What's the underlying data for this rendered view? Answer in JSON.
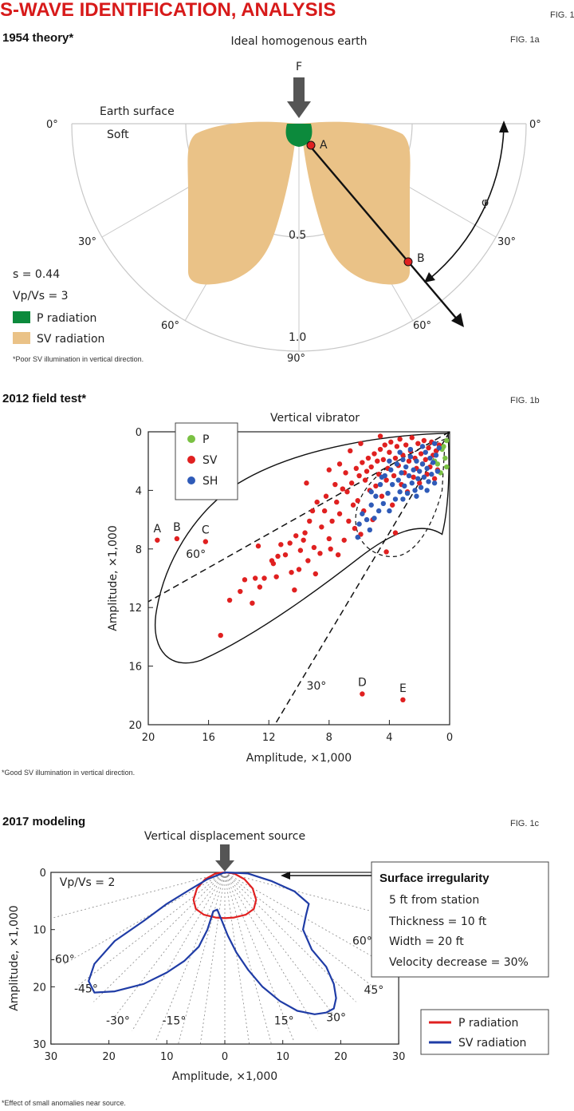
{
  "header": {
    "title": "S-WAVE IDENTIFICATION, ANALYSIS",
    "fig_label": "FIG. 1"
  },
  "panels": {
    "a": {
      "heading": "1954 theory*",
      "fig_label": "FIG. 1a",
      "subtitle": "Ideal homogenous earth",
      "force_label": "F",
      "surface_label": "Earth surface",
      "soft_label": "Soft",
      "radius_labels": [
        "0.5",
        "1.0"
      ],
      "angle_labels": [
        "0°",
        "30°",
        "60°",
        "90°",
        "60°",
        "30°",
        "0°"
      ],
      "phi_label": "φ",
      "point_labels": [
        "A",
        "B"
      ],
      "params": [
        "s = 0.44",
        "Vp/Vs = 3"
      ],
      "legend": [
        {
          "label": "P radiation",
          "color": "#0c8a3c"
        },
        {
          "label": "SV radiation",
          "color": "#eac287"
        }
      ],
      "footnote": "*Poor SV illumination in vertical direction."
    },
    "b": {
      "heading": "2012 field test*",
      "fig_label": "FIG. 1b",
      "footnote": "*Good SV illumination in vertical direction."
    },
    "c": {
      "heading": "2017 modeling",
      "fig_label": "FIG. 1c",
      "footnote": "*Effect of small anomalies near source.",
      "info_box": {
        "title": "Surface irregularity",
        "lines": [
          "5 ft from station",
          "Thickness = 10 ft",
          "Width = 20 ft",
          "Velocity decrease = 30%"
        ]
      }
    }
  },
  "chart_data": [
    {
      "type": "scatter",
      "title": "Vertical vibrator",
      "xlabel": "Amplitude, ×1,000",
      "ylabel": "Amplitude, ×1,000",
      "xlim": [
        20,
        0
      ],
      "ylim": [
        20,
        0
      ],
      "xticks": [
        20,
        16,
        12,
        8,
        4,
        0
      ],
      "yticks": [
        0,
        4,
        8,
        12,
        16,
        20
      ],
      "legend_position": "top-left",
      "grid": false,
      "guide_lines": [
        {
          "label": "60°",
          "from": [
            0,
            0
          ],
          "to": [
            20,
            11.6
          ],
          "style": "dashed"
        },
        {
          "label": "30°",
          "from": [
            0,
            0
          ],
          "to": [
            11.6,
            20
          ],
          "style": "dashed"
        }
      ],
      "labeled_points": [
        {
          "label": "A",
          "x": 19.4,
          "y": 7.4
        },
        {
          "label": "B",
          "x": 18.1,
          "y": 7.3
        },
        {
          "label": "C",
          "x": 16.2,
          "y": 7.5
        },
        {
          "label": "D",
          "x": 5.8,
          "y": 17.9
        },
        {
          "label": "E",
          "x": 3.1,
          "y": 18.3
        }
      ],
      "series": [
        {
          "name": "P",
          "color": "#7ac143",
          "points": [
            [
              0.5,
              1.2
            ],
            [
              0.3,
              1.8
            ],
            [
              0.8,
              2.2
            ],
            [
              0.2,
              0.6
            ],
            [
              0.6,
              2.8
            ],
            [
              0.4,
              1.0
            ],
            [
              1.0,
              2.0
            ],
            [
              0.2,
              2.4
            ]
          ]
        },
        {
          "name": "SV",
          "color": "#e02020",
          "points": [
            [
              15.2,
              13.9
            ],
            [
              14.6,
              11.5
            ],
            [
              13.9,
              10.9
            ],
            [
              13.6,
              10.1
            ],
            [
              13.1,
              11.7
            ],
            [
              12.9,
              10.0
            ],
            [
              12.6,
              10.6
            ],
            [
              12.3,
              10.0
            ],
            [
              11.7,
              9.0
            ],
            [
              11.5,
              9.9
            ],
            [
              11.4,
              8.5
            ],
            [
              11.2,
              7.7
            ],
            [
              10.9,
              8.4
            ],
            [
              10.6,
              7.6
            ],
            [
              10.5,
              9.6
            ],
            [
              10.3,
              10.8
            ],
            [
              10.2,
              7.1
            ],
            [
              9.9,
              8.1
            ],
            [
              9.7,
              7.4
            ],
            [
              9.6,
              6.9
            ],
            [
              9.4,
              8.8
            ],
            [
              9.3,
              6.1
            ],
            [
              9.1,
              5.4
            ],
            [
              9.0,
              7.9
            ],
            [
              8.9,
              9.7
            ],
            [
              8.8,
              4.8
            ],
            [
              8.6,
              8.3
            ],
            [
              8.5,
              6.5
            ],
            [
              8.3,
              5.4
            ],
            [
              8.2,
              4.4
            ],
            [
              8.0,
              7.3
            ],
            [
              7.9,
              8.0
            ],
            [
              7.8,
              6.1
            ],
            [
              7.6,
              3.6
            ],
            [
              7.5,
              4.8
            ],
            [
              7.4,
              8.4
            ],
            [
              7.3,
              5.6
            ],
            [
              7.1,
              3.9
            ],
            [
              7.0,
              7.4
            ],
            [
              6.9,
              2.8
            ],
            [
              6.8,
              4.1
            ],
            [
              6.7,
              6.1
            ],
            [
              6.5,
              3.5
            ],
            [
              6.4,
              5.0
            ],
            [
              6.2,
              2.5
            ],
            [
              6.1,
              4.7
            ],
            [
              6.0,
              3.0
            ],
            [
              5.9,
              7.0
            ],
            [
              5.8,
              2.1
            ],
            [
              5.7,
              5.4
            ],
            [
              5.6,
              3.3
            ],
            [
              5.5,
              2.7
            ],
            [
              5.4,
              1.8
            ],
            [
              5.3,
              4.0
            ],
            [
              5.2,
              2.4
            ],
            [
              5.1,
              6.0
            ],
            [
              5.0,
              1.5
            ],
            [
              4.9,
              3.7
            ],
            [
              4.8,
              2.0
            ],
            [
              4.7,
              2.9
            ],
            [
              4.6,
              1.2
            ],
            [
              4.5,
              4.4
            ],
            [
              4.4,
              1.9
            ],
            [
              4.3,
              0.9
            ],
            [
              4.2,
              3.3
            ],
            [
              4.1,
              2.5
            ],
            [
              4.0,
              1.4
            ],
            [
              3.9,
              0.7
            ],
            [
              3.8,
              5.0
            ],
            [
              3.7,
              3.0
            ],
            [
              3.6,
              1.8
            ],
            [
              3.5,
              1.0
            ],
            [
              3.4,
              2.3
            ],
            [
              3.3,
              0.5
            ],
            [
              3.2,
              3.6
            ],
            [
              3.1,
              1.6
            ],
            [
              3.0,
              2.8
            ],
            [
              2.9,
              0.9
            ],
            [
              2.8,
              4.1
            ],
            [
              2.7,
              2.0
            ],
            [
              2.6,
              1.3
            ],
            [
              2.5,
              0.4
            ],
            [
              2.4,
              3.1
            ],
            [
              2.3,
              1.8
            ],
            [
              2.2,
              2.5
            ],
            [
              2.1,
              0.8
            ],
            [
              2.0,
              3.5
            ],
            [
              1.9,
              1.5
            ],
            [
              1.8,
              2.2
            ],
            [
              1.7,
              0.6
            ],
            [
              1.6,
              1.9
            ],
            [
              1.5,
              2.9
            ],
            [
              1.4,
              1.1
            ],
            [
              1.3,
              2.4
            ],
            [
              1.2,
              0.7
            ],
            [
              1.1,
              1.6
            ],
            [
              1.0,
              3.2
            ],
            [
              0.9,
              1.3
            ],
            [
              0.8,
              2.6
            ],
            [
              0.7,
              0.9
            ],
            [
              4.2,
              8.2
            ],
            [
              3.6,
              6.9
            ],
            [
              6.3,
              6.6
            ],
            [
              10.0,
              9.4
            ],
            [
              11.8,
              8.8
            ],
            [
              12.7,
              7.8
            ],
            [
              7.3,
              2.2
            ],
            [
              8.0,
              2.6
            ],
            [
              9.5,
              3.5
            ],
            [
              6.6,
              1.3
            ],
            [
              5.9,
              0.8
            ],
            [
              4.6,
              0.3
            ]
          ]
        },
        {
          "name": "SH",
          "color": "#2f5bb8",
          "points": [
            [
              6.1,
              7.2
            ],
            [
              6.0,
              6.3
            ],
            [
              5.8,
              5.6
            ],
            [
              5.5,
              6.0
            ],
            [
              5.3,
              6.7
            ],
            [
              5.2,
              5.0
            ],
            [
              5.0,
              5.9
            ],
            [
              4.9,
              4.4
            ],
            [
              4.7,
              5.4
            ],
            [
              4.6,
              3.6
            ],
            [
              4.4,
              4.9
            ],
            [
              4.3,
              3.0
            ],
            [
              4.1,
              4.2
            ],
            [
              4.0,
              5.4
            ],
            [
              3.9,
              2.6
            ],
            [
              3.8,
              3.6
            ],
            [
              3.6,
              4.6
            ],
            [
              3.5,
              2.2
            ],
            [
              3.4,
              3.3
            ],
            [
              3.3,
              4.1
            ],
            [
              3.2,
              2.8
            ],
            [
              3.1,
              1.9
            ],
            [
              3.0,
              3.7
            ],
            [
              2.9,
              2.4
            ],
            [
              2.8,
              4.2
            ],
            [
              2.7,
              3.0
            ],
            [
              2.6,
              1.7
            ],
            [
              2.5,
              3.5
            ],
            [
              2.4,
              2.6
            ],
            [
              2.3,
              4.0
            ],
            [
              2.2,
              2.0
            ],
            [
              2.1,
              3.2
            ],
            [
              2.0,
              2.7
            ],
            [
              1.9,
              3.8
            ],
            [
              1.8,
              2.2
            ],
            [
              1.7,
              3.1
            ],
            [
              1.6,
              1.4
            ],
            [
              1.5,
              2.5
            ],
            [
              1.4,
              3.4
            ],
            [
              1.3,
              1.8
            ],
            [
              1.2,
              2.9
            ],
            [
              1.1,
              2.1
            ],
            [
              1.0,
              3.5
            ],
            [
              0.9,
              1.6
            ],
            [
              0.8,
              2.7
            ],
            [
              0.7,
              1.1
            ],
            [
              1.5,
              4.0
            ],
            [
              2.2,
              4.4
            ],
            [
              3.1,
              4.6
            ],
            [
              4.5,
              3.1
            ],
            [
              5.2,
              4.1
            ],
            [
              4.0,
              2.0
            ],
            [
              3.3,
              1.4
            ],
            [
              2.6,
              1.2
            ],
            [
              1.8,
              1.0
            ],
            [
              1.0,
              0.8
            ]
          ]
        }
      ]
    },
    {
      "type": "line",
      "title": "Vertical displacement source",
      "annotation": "Vp/Vs = 2",
      "xlabel": "Amplitude, ×1,000",
      "ylabel": "Amplitude, ×1,000",
      "xlim": [
        -30,
        30
      ],
      "ylim": [
        30,
        0
      ],
      "xticks_labels": [
        "30",
        "20",
        "10",
        "0",
        "10",
        "20",
        "30"
      ],
      "yticks": [
        0,
        10,
        20,
        30
      ],
      "angle_labels": [
        "-60°",
        "-45°",
        "-30°",
        "-15°",
        "15°",
        "30°",
        "45°",
        "60°"
      ],
      "legend_position": "bottom-right",
      "series": [
        {
          "name": "P radiation",
          "color": "#e02020",
          "x": [
            0,
            1.6,
            3.4,
            4.8,
            5.4,
            5.0,
            3.6,
            1.6,
            0,
            -1.6,
            -3.6,
            -5.0,
            -5.4,
            -4.8,
            -3.4,
            -1.6,
            0
          ],
          "y": [
            0,
            0.2,
            1.2,
            2.8,
            4.8,
            6.4,
            7.4,
            7.9,
            8.0,
            7.9,
            7.4,
            6.4,
            4.8,
            2.8,
            1.2,
            0.2,
            0
          ]
        },
        {
          "name": "SV radiation",
          "color": "#1f3ca6",
          "x": [
            0,
            4,
            8,
            12,
            14.5,
            14,
            13.5,
            15,
            17.5,
            18.8,
            19.2,
            18.8,
            17.5,
            15.5,
            12.5,
            9.5,
            6.5,
            4,
            2,
            0.5,
            -0.5,
            -1.3,
            -2,
            -3,
            -4.5,
            -7,
            -10,
            -14,
            -19,
            -22.5,
            -23.5,
            -22.5,
            -19,
            -14,
            -10,
            -6,
            -3,
            0
          ],
          "y": [
            0,
            0.2,
            1.5,
            3.3,
            5.5,
            7.5,
            10,
            13.5,
            16.5,
            19.5,
            22,
            23.8,
            24.5,
            24.8,
            24.2,
            22.5,
            20,
            17,
            14,
            11,
            8.5,
            6.5,
            6.8,
            10,
            13,
            15.5,
            17.5,
            19.5,
            20.8,
            21,
            19,
            16,
            12,
            8.5,
            5.5,
            3,
            1.2,
            0
          ]
        }
      ]
    }
  ]
}
